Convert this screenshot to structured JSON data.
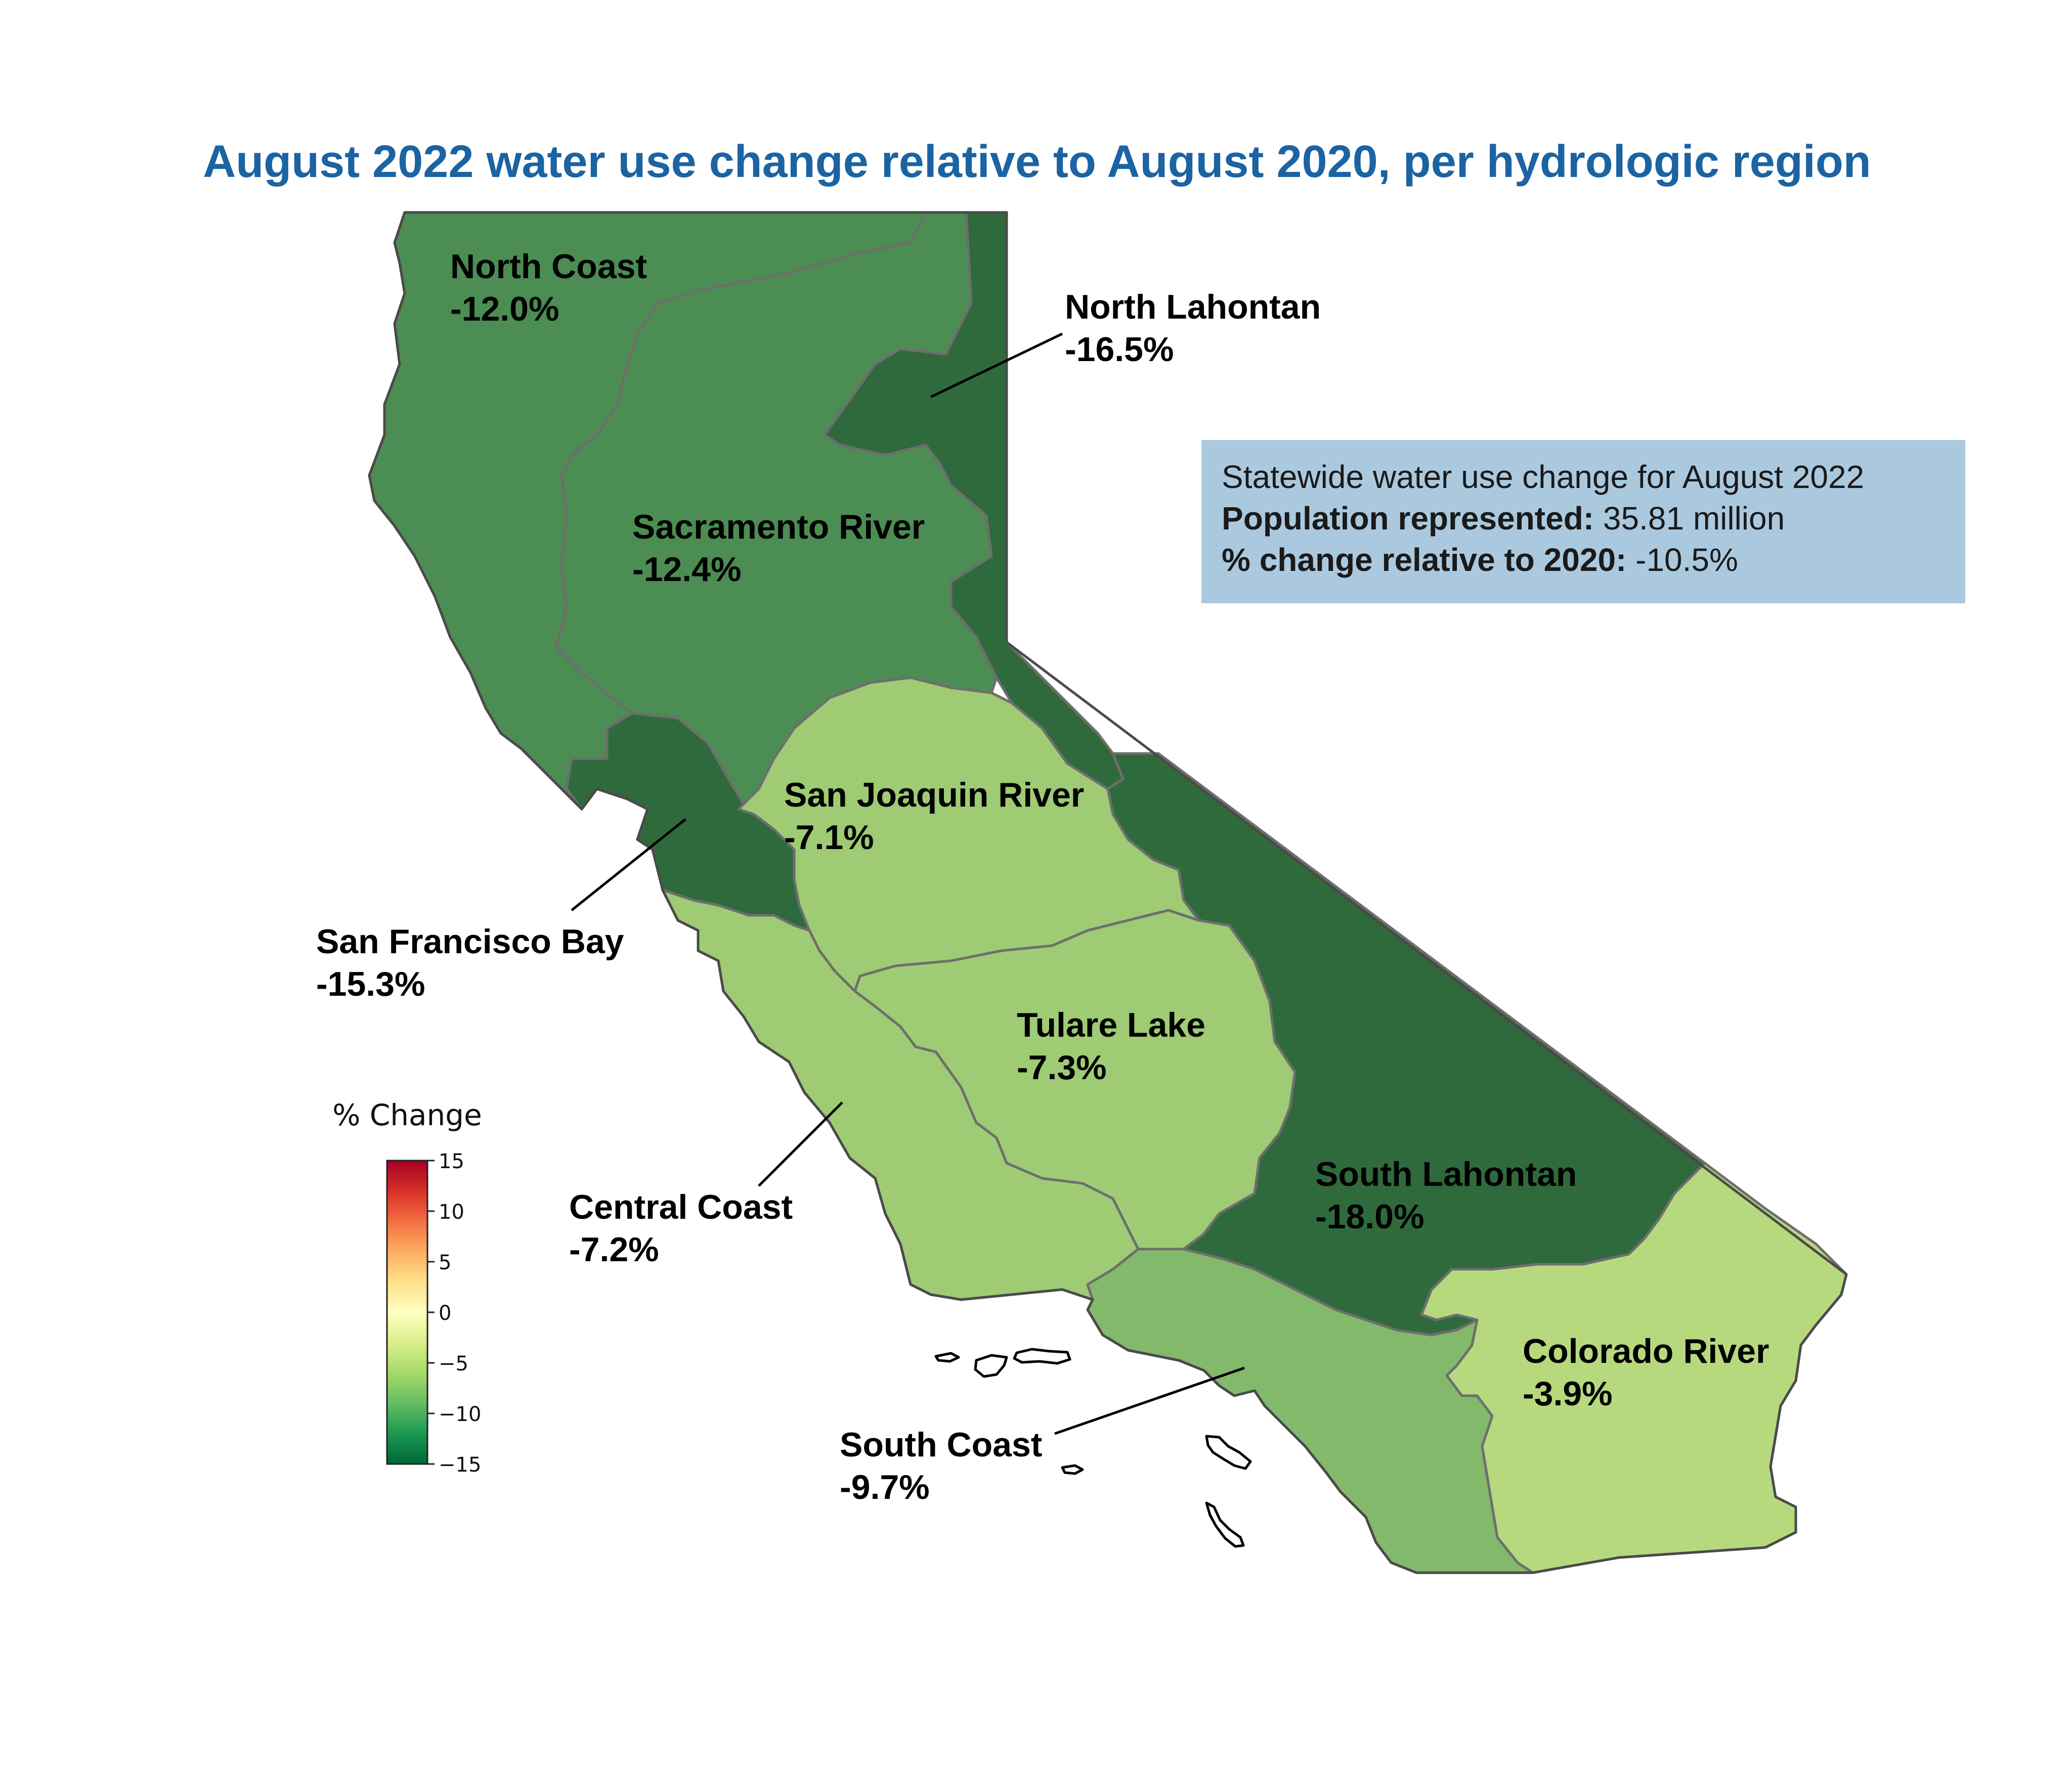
{
  "title": "August 2022 water use change relative to August 2020, per hydrologic region",
  "colors": {
    "title": "#1b63a3",
    "info_box": "#abc9de"
  },
  "regions": [
    {
      "id": "north-coast",
      "name": "North Coast",
      "value": -12.0,
      "value_label": "-12.0%",
      "color": "#4b8d52"
    },
    {
      "id": "north-lahontan",
      "name": "North Lahontan",
      "value": -16.5,
      "value_label": "-16.5%",
      "color": "#2f6a3d"
    },
    {
      "id": "sacramento-river",
      "name": "Sacramento River",
      "value": -12.4,
      "value_label": "-12.4%",
      "color": "#4b8d52"
    },
    {
      "id": "san-francisco-bay",
      "name": "San Francisco Bay",
      "value": -15.3,
      "value_label": "-15.3%",
      "color": "#2f6a3d"
    },
    {
      "id": "san-joaquin-river",
      "name": "San Joaquin River",
      "value": -7.1,
      "value_label": "-7.1%",
      "color": "#9ecb73"
    },
    {
      "id": "tulare-lake",
      "name": "Tulare Lake",
      "value": -7.3,
      "value_label": "-7.3%",
      "color": "#9ecb73"
    },
    {
      "id": "central-coast",
      "name": "Central Coast",
      "value": -7.2,
      "value_label": "-7.2%",
      "color": "#9ecb73"
    },
    {
      "id": "south-lahontan",
      "name": "South Lahontan",
      "value": -18.0,
      "value_label": "-18.0%",
      "color": "#2f6a3d"
    },
    {
      "id": "south-coast",
      "name": "South Coast",
      "value": -9.7,
      "value_label": "-9.7%",
      "color": "#82b96a"
    },
    {
      "id": "colorado-river",
      "name": "Colorado River",
      "value": -3.9,
      "value_label": "-3.9%",
      "color": "#b7d97e"
    }
  ],
  "statewide": {
    "heading": "Statewide water use change for August 2022",
    "population_label": "Population represented:",
    "population_value": "35.81 million",
    "change_label": "% change relative to 2020:",
    "change_value": "-10.5%"
  },
  "legend": {
    "title": "% Change",
    "ticks": [
      "15",
      "10",
      "5",
      "0",
      "−5",
      "−10",
      "−15"
    ],
    "min": -15,
    "max": 15,
    "colors": [
      "#006837",
      "#1a9850",
      "#66bd63",
      "#a6d96a",
      "#d9ef8b",
      "#ffffbf",
      "#fee08b",
      "#fdae61",
      "#f46d43",
      "#d73027",
      "#a50026"
    ]
  }
}
